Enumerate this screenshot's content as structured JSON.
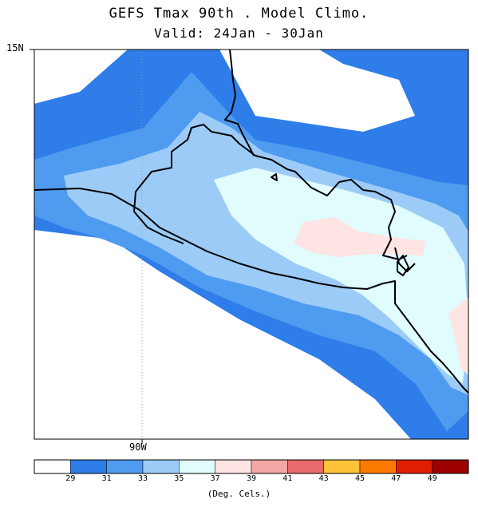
{
  "title": "GEFS Tmax 90th . Model Climo.",
  "subtitle": "Valid: 24Jan - 30Jan",
  "map": {
    "lat_label": "15N",
    "lon_label": "90W"
  },
  "legend": {
    "units": "(Deg. Cels.)",
    "ticks": [
      "29",
      "31",
      "33",
      "35",
      "37",
      "39",
      "41",
      "43",
      "45",
      "47",
      "49"
    ],
    "colors": [
      "#ffffff",
      "#2e7de8",
      "#4e9bf0",
      "#9ccbf7",
      "#e0fcfd",
      "#ffe4e4",
      "#f4a5a5",
      "#e86a6a",
      "#fcc23a",
      "#fc7a00",
      "#e01e00",
      "#9c0000"
    ]
  }
}
